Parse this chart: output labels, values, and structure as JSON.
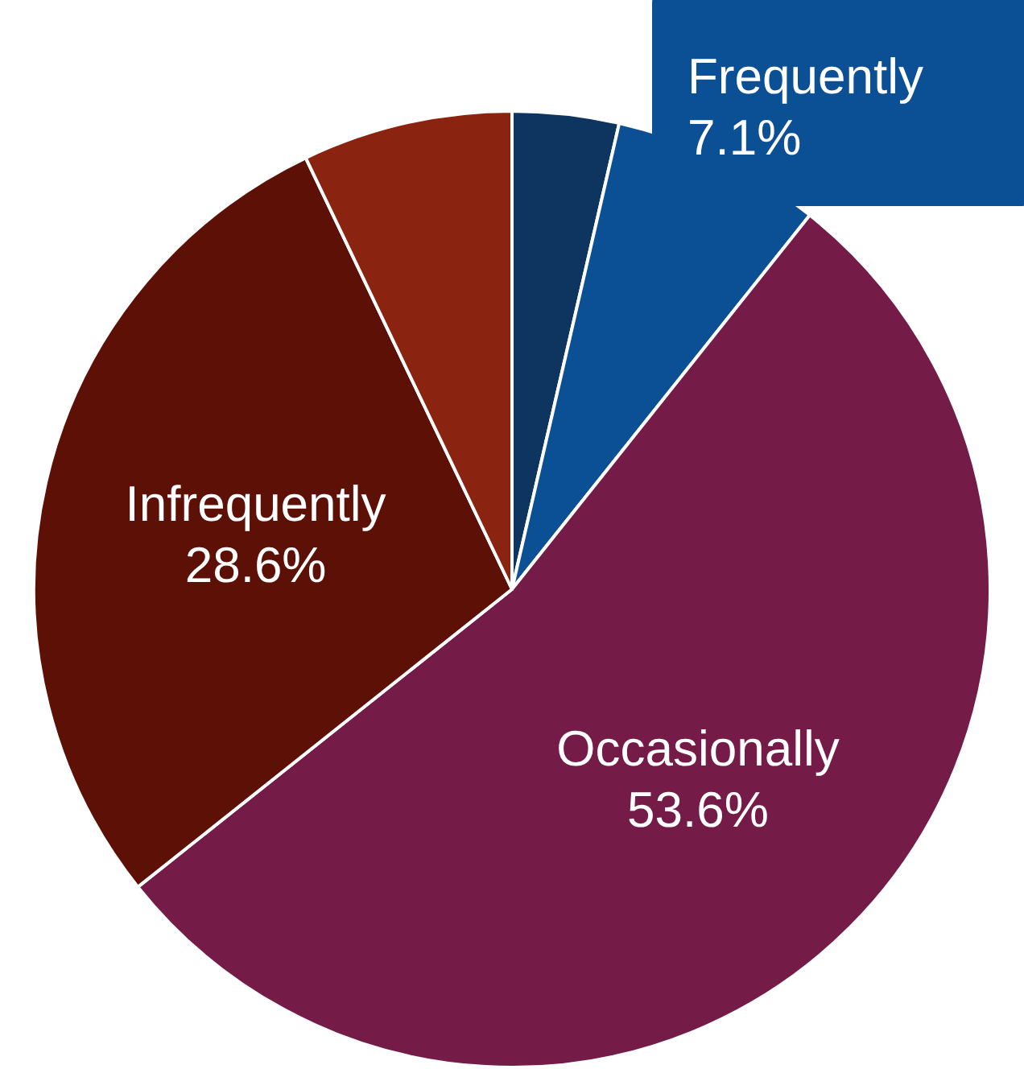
{
  "chart_data": {
    "type": "pie",
    "categories": [
      null,
      "Frequently",
      "Occasionally",
      "Infrequently",
      null
    ],
    "values": [
      3.6,
      7.1,
      53.6,
      28.6,
      7.1
    ],
    "value_labels": [
      null,
      "7.1%",
      "53.6%",
      "28.6%",
      null
    ],
    "colors": [
      "#0d3560",
      "#0b4f95",
      "#741b47",
      "#5c1006",
      "#8a2310"
    ]
  }
}
